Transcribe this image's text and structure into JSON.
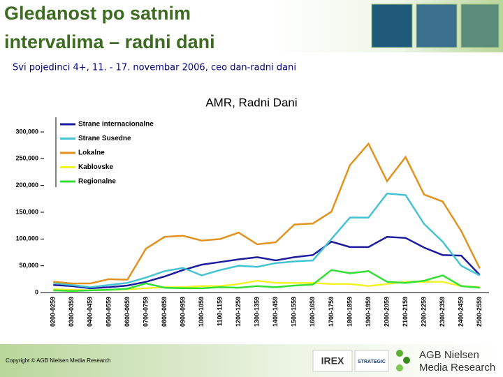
{
  "header": {
    "title_lines": [
      "Gledanost po satnim",
      "intervalima – radni dani"
    ],
    "subtitle": "Svi pojedinci 4+, 11. - 17. novembar 2006, ceo dan-radni dani"
  },
  "footer": {
    "copyright": "Copyright © AGB Nielsen Media Research",
    "logos": [
      "IREX",
      "STRATEGIC"
    ],
    "brand_lines": [
      "AGB Nielsen",
      "Media Research"
    ]
  },
  "chart_data": {
    "type": "line",
    "title": "AMR, Radni Dani",
    "categories": [
      "0200-0259",
      "0300-0359",
      "0400-0459",
      "0500-0559",
      "0600-0659",
      "0700-0759",
      "0800-0859",
      "0900-0959",
      "1000-1059",
      "1100-1159",
      "1200-1259",
      "1300-1359",
      "1400-1459",
      "1500-1559",
      "1600-1659",
      "1700-1759",
      "1800-1859",
      "1900-1959",
      "2000-2059",
      "2100-2159",
      "2200-2259",
      "2300-2359",
      "2400-2459",
      "2500-2559"
    ],
    "series": [
      {
        "name": "Strane internacionalne",
        "color": "#1c1c9e",
        "values": [
          14000,
          12000,
          8000,
          10000,
          13000,
          20000,
          30000,
          42000,
          52000,
          57000,
          62000,
          66000,
          60000,
          66000,
          70000,
          95000,
          85000,
          85000,
          104000,
          102000,
          84000,
          70000,
          69000,
          33000
        ]
      },
      {
        "name": "Strane Susedne",
        "color": "#45c3d3",
        "values": [
          18000,
          14000,
          10000,
          14000,
          18000,
          28000,
          40000,
          46000,
          32000,
          42000,
          50000,
          48000,
          55000,
          58000,
          60000,
          100000,
          140000,
          140000,
          185000,
          182000,
          128000,
          95000,
          50000,
          32000
        ]
      },
      {
        "name": "Lokalne",
        "color": "#e2921f",
        "values": [
          20000,
          17000,
          17000,
          25000,
          24000,
          82000,
          104000,
          106000,
          97000,
          100000,
          112000,
          90000,
          94000,
          127000,
          129000,
          151000,
          238000,
          278000,
          208000,
          253000,
          183000,
          170000,
          115000,
          45000
        ]
      },
      {
        "name": "Kablovske",
        "color": "#f2f22a",
        "values": [
          6000,
          5000,
          4000,
          5000,
          6000,
          8000,
          10000,
          10000,
          12000,
          12000,
          16000,
          22000,
          18000,
          18000,
          18000,
          16000,
          16000,
          12000,
          16000,
          20000,
          20000,
          20000,
          12000,
          10000
        ]
      },
      {
        "name": "Regionalne",
        "color": "#33e033",
        "values": [
          4000,
          3000,
          4000,
          5000,
          7000,
          17000,
          9000,
          8000,
          8000,
          10000,
          9000,
          12000,
          10000,
          13000,
          15000,
          42000,
          36000,
          40000,
          20000,
          18000,
          22000,
          32000,
          12000,
          9000
        ]
      }
    ],
    "ylim": [
      0,
      300000
    ],
    "yticks": [
      0,
      {
        "value": 50000,
        "label": "50,000"
      },
      {
        "value": 100000,
        "label": "100,000"
      },
      {
        "value": 150000,
        "label": "150,000"
      },
      {
        "value": 200000,
        "label": "200,000"
      },
      {
        "value": 250000,
        "label": "250,000"
      },
      {
        "value": 300000,
        "label": "300,000"
      }
    ],
    "grid": false,
    "legend": "top-left"
  }
}
